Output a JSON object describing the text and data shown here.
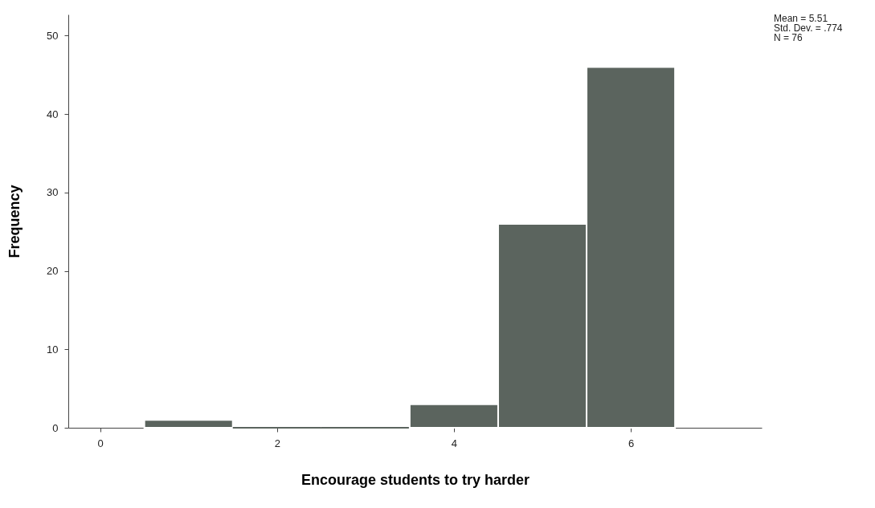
{
  "chart_data": {
    "type": "histogram",
    "xlabel": "Encourage students to try harder",
    "ylabel": "Frequency",
    "bins": [
      0.5,
      1.5,
      2.5,
      3.5,
      4.5,
      5.5,
      6.5
    ],
    "values": [
      1,
      0,
      0,
      3,
      26,
      46
    ],
    "color": "#5b645e",
    "xlim": [
      -0.36,
      7.48
    ],
    "xticks": [
      0,
      2,
      4,
      6
    ],
    "ylim": [
      0,
      52.7
    ],
    "yticks": [
      0,
      10,
      20,
      30,
      40,
      50
    ],
    "grid": false,
    "annotations": [
      "Mean = 5.51",
      "Std. Dev. = .774",
      "N = 76"
    ]
  }
}
